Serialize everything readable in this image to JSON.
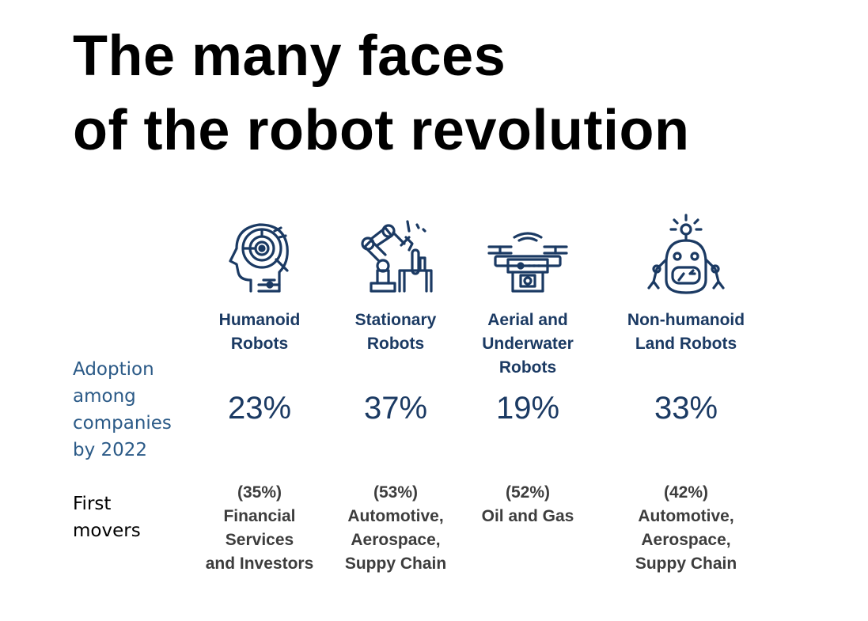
{
  "title": {
    "line1": "The many faces",
    "line2": "of the robot revolution"
  },
  "row_labels": {
    "adoption": "Adoption among companies by 2022",
    "first_movers": "First movers"
  },
  "colors": {
    "navy": "#1b3a63",
    "label_blue": "#2b5a87"
  },
  "columns": [
    {
      "icon": "humanoid-head-icon",
      "name_lines": [
        "Humanoid",
        "Robots"
      ],
      "adoption": "23%",
      "movers_pct": "(35%)",
      "movers_lines": [
        "Financial",
        "Services",
        "and Investors"
      ]
    },
    {
      "icon": "robotic-arm-icon",
      "name_lines": [
        "Stationary",
        "Robots"
      ],
      "adoption": "37%",
      "movers_pct": "(53%)",
      "movers_lines": [
        "Automotive,",
        "Aerospace,",
        "Suppy Chain"
      ]
    },
    {
      "icon": "drone-icon",
      "name_lines": [
        "Aerial and",
        "Underwater",
        "Robots"
      ],
      "adoption": "19%",
      "movers_pct": "(52%)",
      "movers_lines": [
        "Oil and Gas"
      ]
    },
    {
      "icon": "land-robot-icon",
      "name_lines": [
        "Non-humanoid",
        "Land Robots"
      ],
      "adoption": "33%",
      "movers_pct": "(42%)",
      "movers_lines": [
        "Automotive,",
        "Aerospace,",
        "Suppy Chain"
      ]
    }
  ]
}
